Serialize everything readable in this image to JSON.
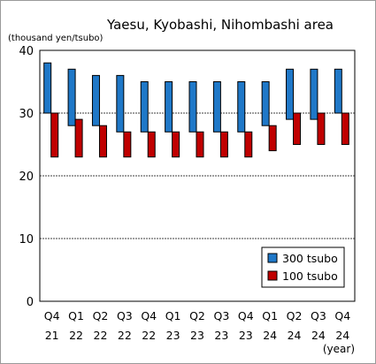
{
  "chart_data": {
    "type": "bar",
    "title": "Yaesu, Kyobashi, Nihombashi area",
    "ylabel": "(thousand yen/tsubo)",
    "xlabel": "(year)",
    "ylim": [
      0,
      40
    ],
    "yticks": [
      "0",
      "10",
      "20",
      "30",
      "40"
    ],
    "grid": true,
    "legend_position": "bottom-right",
    "categories": [
      {
        "quarter": "Q4",
        "year": "21"
      },
      {
        "quarter": "Q1",
        "year": "22"
      },
      {
        "quarter": "Q2",
        "year": "22"
      },
      {
        "quarter": "Q3",
        "year": "22"
      },
      {
        "quarter": "Q4",
        "year": "22"
      },
      {
        "quarter": "Q1",
        "year": "23"
      },
      {
        "quarter": "Q2",
        "year": "23"
      },
      {
        "quarter": "Q3",
        "year": "23"
      },
      {
        "quarter": "Q4",
        "year": "23"
      },
      {
        "quarter": "Q1",
        "year": "24"
      },
      {
        "quarter": "Q2",
        "year": "24"
      },
      {
        "quarter": "Q3",
        "year": "24"
      },
      {
        "quarter": "Q4",
        "year": "24"
      }
    ],
    "series": [
      {
        "name": "300 tsubo",
        "color": "#1f78c8",
        "low": [
          30,
          28,
          28,
          27,
          27,
          27,
          27,
          27,
          27,
          28,
          29,
          29,
          30
        ],
        "high": [
          38,
          37,
          36,
          36,
          35,
          35,
          35,
          35,
          35,
          35,
          37,
          37,
          37
        ]
      },
      {
        "name": "100 tsubo",
        "color": "#c00000",
        "low": [
          23,
          23,
          23,
          23,
          23,
          23,
          23,
          23,
          23,
          24,
          25,
          25,
          25
        ],
        "high": [
          30,
          29,
          28,
          27,
          27,
          27,
          27,
          27,
          27,
          28,
          30,
          30,
          30
        ]
      }
    ]
  }
}
